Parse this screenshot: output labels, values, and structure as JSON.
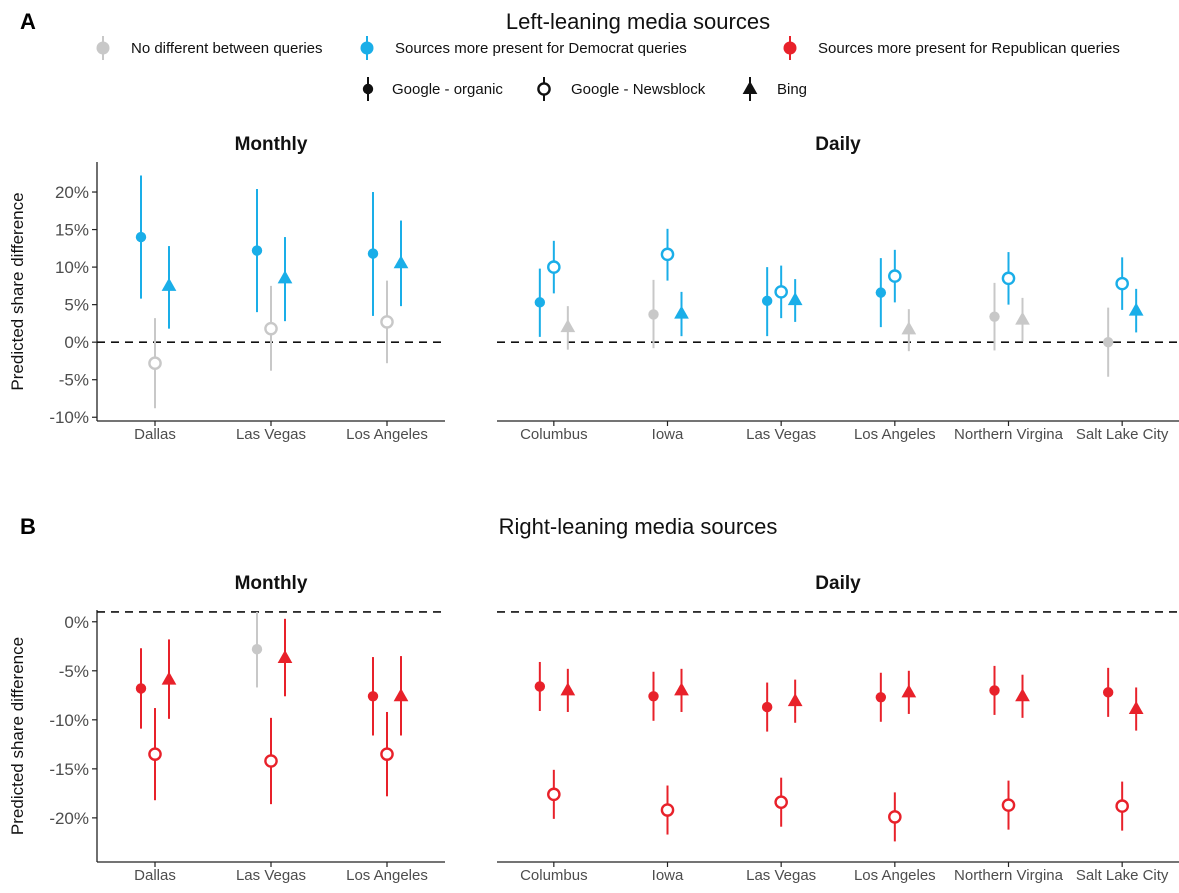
{
  "colors": {
    "none": "#c8c8c8",
    "dem": "#1aaee8",
    "rep": "#e8212a",
    "text": "#111111",
    "tick": "#4d4d4d"
  },
  "legend": {
    "direction": [
      {
        "key": "none",
        "label": "No different between queries"
      },
      {
        "key": "dem",
        "label": "Sources more present for Democrat queries"
      },
      {
        "key": "rep",
        "label": "Sources more present for Republican queries"
      }
    ],
    "source": [
      {
        "key": "organic",
        "label": "Google - organic"
      },
      {
        "key": "newsblock",
        "label": "Google - Newsblock"
      },
      {
        "key": "bing",
        "label": "Bing"
      }
    ]
  },
  "chart_data": [
    {
      "type": "scatter",
      "panel_letter": "A",
      "title": "Left-leaning media sources",
      "ylabel": "Predicted share difference",
      "ylim": [
        -10.5,
        24
      ],
      "yticks": [
        -10,
        -5,
        0,
        5,
        10,
        15,
        20
      ],
      "ytick_labels": [
        "-10%",
        "-5%",
        "0%",
        "5%",
        "10%",
        "15%",
        "20%"
      ],
      "reference_line": 0,
      "facets": [
        {
          "title": "Monthly",
          "categories": [
            "Dallas",
            "Las Vegas",
            "Los Angeles"
          ],
          "points": [
            {
              "category": "Dallas",
              "source": "organic",
              "direction": "dem",
              "y": 14.0,
              "low": 5.8,
              "high": 22.2
            },
            {
              "category": "Dallas",
              "source": "newsblock",
              "direction": "none",
              "y": -2.8,
              "low": -8.8,
              "high": 3.2
            },
            {
              "category": "Dallas",
              "source": "bing",
              "direction": "dem",
              "y": 7.5,
              "low": 1.8,
              "high": 12.8
            },
            {
              "category": "Las Vegas",
              "source": "organic",
              "direction": "dem",
              "y": 12.2,
              "low": 4.0,
              "high": 20.4
            },
            {
              "category": "Las Vegas",
              "source": "newsblock",
              "direction": "none",
              "y": 1.8,
              "low": -3.8,
              "high": 7.5
            },
            {
              "category": "Las Vegas",
              "source": "bing",
              "direction": "dem",
              "y": 8.5,
              "low": 2.8,
              "high": 14.0
            },
            {
              "category": "Los Angeles",
              "source": "organic",
              "direction": "dem",
              "y": 11.8,
              "low": 3.5,
              "high": 20.0
            },
            {
              "category": "Los Angeles",
              "source": "newsblock",
              "direction": "none",
              "y": 2.7,
              "low": -2.8,
              "high": 8.2
            },
            {
              "category": "Los Angeles",
              "source": "bing",
              "direction": "dem",
              "y": 10.5,
              "low": 4.8,
              "high": 16.2
            }
          ]
        },
        {
          "title": "Daily",
          "categories": [
            "Columbus",
            "Iowa",
            "Las Vegas",
            "Los Angeles",
            "Northern Virgina",
            "Salt Lake City"
          ],
          "points": [
            {
              "category": "Columbus",
              "source": "organic",
              "direction": "dem",
              "y": 5.3,
              "low": 0.7,
              "high": 9.8
            },
            {
              "category": "Columbus",
              "source": "newsblock",
              "direction": "dem",
              "y": 10.0,
              "low": 6.5,
              "high": 13.5
            },
            {
              "category": "Columbus",
              "source": "bing",
              "direction": "none",
              "y": 2.0,
              "low": -1.0,
              "high": 4.8
            },
            {
              "category": "Iowa",
              "source": "organic",
              "direction": "none",
              "y": 3.7,
              "low": -0.8,
              "high": 8.3
            },
            {
              "category": "Iowa",
              "source": "newsblock",
              "direction": "dem",
              "y": 11.7,
              "low": 8.2,
              "high": 15.1
            },
            {
              "category": "Iowa",
              "source": "bing",
              "direction": "dem",
              "y": 3.8,
              "low": 0.8,
              "high": 6.7
            },
            {
              "category": "Las Vegas",
              "source": "organic",
              "direction": "dem",
              "y": 5.5,
              "low": 0.8,
              "high": 10.0
            },
            {
              "category": "Las Vegas",
              "source": "newsblock",
              "direction": "dem",
              "y": 6.7,
              "low": 3.2,
              "high": 10.2
            },
            {
              "category": "Las Vegas",
              "source": "bing",
              "direction": "dem",
              "y": 5.6,
              "low": 2.7,
              "high": 8.4
            },
            {
              "category": "Los Angeles",
              "source": "organic",
              "direction": "dem",
              "y": 6.6,
              "low": 2.0,
              "high": 11.2
            },
            {
              "category": "Los Angeles",
              "source": "newsblock",
              "direction": "dem",
              "y": 8.8,
              "low": 5.3,
              "high": 12.3
            },
            {
              "category": "Los Angeles",
              "source": "bing",
              "direction": "none",
              "y": 1.7,
              "low": -1.2,
              "high": 4.4
            },
            {
              "category": "Northern Virgina",
              "source": "organic",
              "direction": "none",
              "y": 3.4,
              "low": -1.1,
              "high": 7.9
            },
            {
              "category": "Northern Virgina",
              "source": "newsblock",
              "direction": "dem",
              "y": 8.5,
              "low": 5.0,
              "high": 12.0
            },
            {
              "category": "Northern Virgina",
              "source": "bing",
              "direction": "none",
              "y": 3.0,
              "low": 0.1,
              "high": 5.9
            },
            {
              "category": "Salt Lake City",
              "source": "organic",
              "direction": "none",
              "y": 0.0,
              "low": -4.6,
              "high": 4.6
            },
            {
              "category": "Salt Lake City",
              "source": "newsblock",
              "direction": "dem",
              "y": 7.8,
              "low": 4.3,
              "high": 11.3
            },
            {
              "category": "Salt Lake City",
              "source": "bing",
              "direction": "dem",
              "y": 4.2,
              "low": 1.3,
              "high": 7.1
            }
          ]
        }
      ]
    },
    {
      "type": "scatter",
      "panel_letter": "B",
      "title": "Right-leaning media sources",
      "ylabel": "Predicted share difference",
      "ylim": [
        -24.5,
        1.2
      ],
      "yticks": [
        -20,
        -15,
        -10,
        -5,
        0
      ],
      "ytick_labels": [
        "-20%",
        "-15%",
        "-10%",
        "-5%",
        "0%"
      ],
      "reference_line": 1.0,
      "facets": [
        {
          "title": "Monthly",
          "categories": [
            "Dallas",
            "Las Vegas",
            "Los Angeles"
          ],
          "points": [
            {
              "category": "Dallas",
              "source": "organic",
              "direction": "rep",
              "y": -6.8,
              "low": -10.9,
              "high": -2.7
            },
            {
              "category": "Dallas",
              "source": "newsblock",
              "direction": "rep",
              "y": -13.5,
              "low": -18.2,
              "high": -8.8
            },
            {
              "category": "Dallas",
              "source": "bing",
              "direction": "rep",
              "y": -5.9,
              "low": -9.9,
              "high": -1.8
            },
            {
              "category": "Las Vegas",
              "source": "organic",
              "direction": "none",
              "y": -2.8,
              "low": -6.7,
              "high": 1.0
            },
            {
              "category": "Las Vegas",
              "source": "newsblock",
              "direction": "rep",
              "y": -14.2,
              "low": -18.6,
              "high": -9.8
            },
            {
              "category": "Las Vegas",
              "source": "bing",
              "direction": "rep",
              "y": -3.7,
              "low": -7.6,
              "high": 0.3
            },
            {
              "category": "Los Angeles",
              "source": "organic",
              "direction": "rep",
              "y": -7.6,
              "low": -11.6,
              "high": -3.6
            },
            {
              "category": "Los Angeles",
              "source": "newsblock",
              "direction": "rep",
              "y": -13.5,
              "low": -17.8,
              "high": -9.2
            },
            {
              "category": "Los Angeles",
              "source": "bing",
              "direction": "rep",
              "y": -7.6,
              "low": -11.6,
              "high": -3.5
            }
          ]
        },
        {
          "title": "Daily",
          "categories": [
            "Columbus",
            "Iowa",
            "Las Vegas",
            "Los Angeles",
            "Northern Virgina",
            "Salt Lake City"
          ],
          "points": [
            {
              "category": "Columbus",
              "source": "organic",
              "direction": "rep",
              "y": -6.6,
              "low": -9.1,
              "high": -4.1
            },
            {
              "category": "Columbus",
              "source": "newsblock",
              "direction": "rep",
              "y": -17.6,
              "low": -20.1,
              "high": -15.1
            },
            {
              "category": "Columbus",
              "source": "bing",
              "direction": "rep",
              "y": -7.0,
              "low": -9.2,
              "high": -4.8
            },
            {
              "category": "Iowa",
              "source": "organic",
              "direction": "rep",
              "y": -7.6,
              "low": -10.1,
              "high": -5.1
            },
            {
              "category": "Iowa",
              "source": "newsblock",
              "direction": "rep",
              "y": -19.2,
              "low": -21.7,
              "high": -16.7
            },
            {
              "category": "Iowa",
              "source": "bing",
              "direction": "rep",
              "y": -7.0,
              "low": -9.2,
              "high": -4.8
            },
            {
              "category": "Las Vegas",
              "source": "organic",
              "direction": "rep",
              "y": -8.7,
              "low": -11.2,
              "high": -6.2
            },
            {
              "category": "Las Vegas",
              "source": "newsblock",
              "direction": "rep",
              "y": -18.4,
              "low": -20.9,
              "high": -15.9
            },
            {
              "category": "Las Vegas",
              "source": "bing",
              "direction": "rep",
              "y": -8.1,
              "low": -10.3,
              "high": -5.9
            },
            {
              "category": "Los Angeles",
              "source": "organic",
              "direction": "rep",
              "y": -7.7,
              "low": -10.2,
              "high": -5.2
            },
            {
              "category": "Los Angeles",
              "source": "newsblock",
              "direction": "rep",
              "y": -19.9,
              "low": -22.4,
              "high": -17.4
            },
            {
              "category": "Los Angeles",
              "source": "bing",
              "direction": "rep",
              "y": -7.2,
              "low": -9.4,
              "high": -5.0
            },
            {
              "category": "Northern Virgina",
              "source": "organic",
              "direction": "rep",
              "y": -7.0,
              "low": -9.5,
              "high": -4.5
            },
            {
              "category": "Northern Virgina",
              "source": "newsblock",
              "direction": "rep",
              "y": -18.7,
              "low": -21.2,
              "high": -16.2
            },
            {
              "category": "Northern Virgina",
              "source": "bing",
              "direction": "rep",
              "y": -7.6,
              "low": -9.8,
              "high": -5.4
            },
            {
              "category": "Salt Lake City",
              "source": "organic",
              "direction": "rep",
              "y": -7.2,
              "low": -9.7,
              "high": -4.7
            },
            {
              "category": "Salt Lake City",
              "source": "newsblock",
              "direction": "rep",
              "y": -18.8,
              "low": -21.3,
              "high": -16.3
            },
            {
              "category": "Salt Lake City",
              "source": "bing",
              "direction": "rep",
              "y": -8.9,
              "low": -11.1,
              "high": -6.7
            }
          ]
        }
      ]
    }
  ]
}
